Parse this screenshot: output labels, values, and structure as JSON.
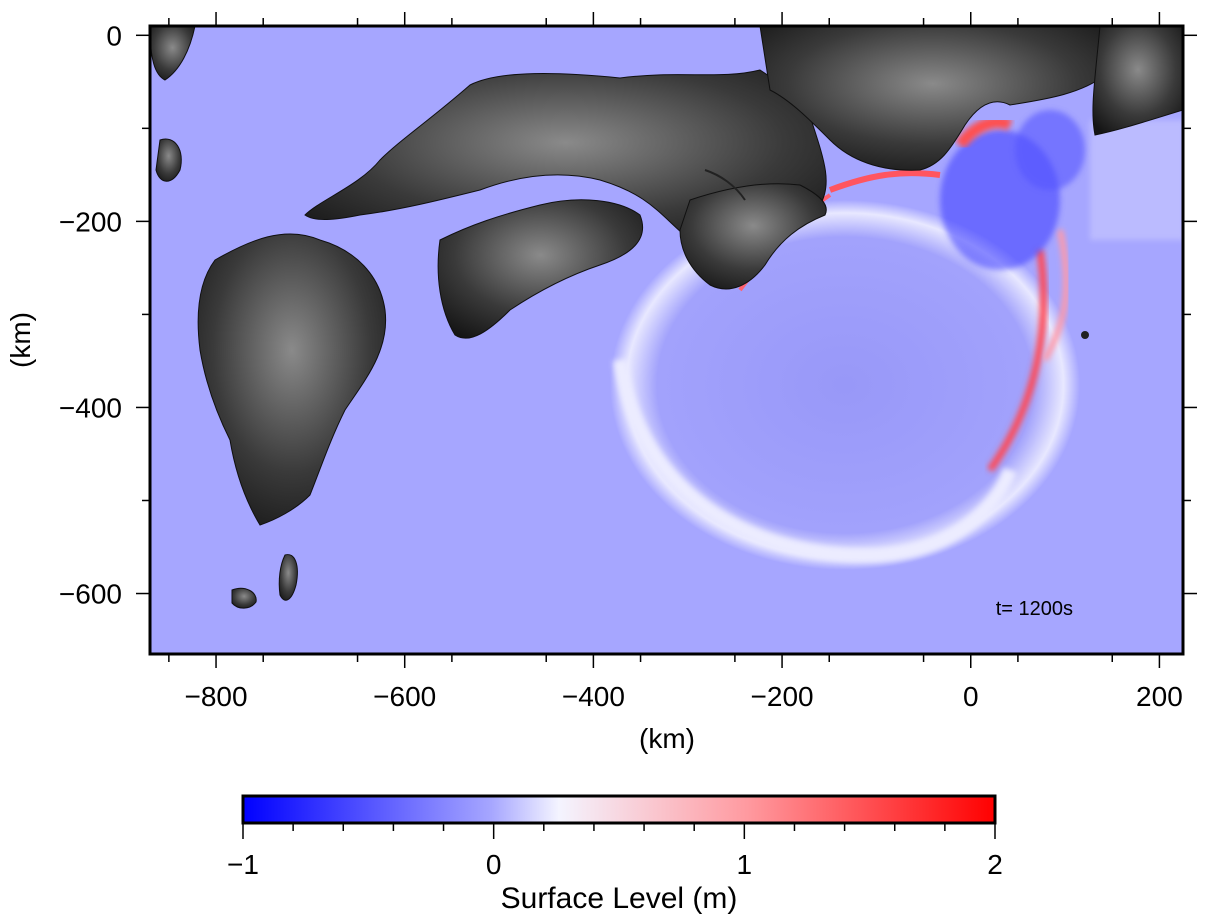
{
  "map": {
    "x_axis_label": "(km)",
    "y_axis_label": "(km)",
    "x_ticks": [
      -800,
      -600,
      -400,
      -200,
      0,
      200
    ],
    "y_ticks": [
      0,
      -200,
      -400,
      -600
    ],
    "x_tick_labels": [
      "−800",
      "−600",
      "−400",
      "−200",
      "0",
      "200"
    ],
    "y_tick_labels": [
      "0",
      "−200",
      "−400",
      "−600"
    ],
    "x_range": [
      -870,
      225
    ],
    "y_range": [
      -665,
      10
    ],
    "time_annotation": "t= 1200s",
    "ocean_color": "#a6a6ff",
    "land_colormap": "grayscale elevation"
  },
  "colorbar": {
    "label": "Surface Level (m)",
    "tick_labels": [
      "−1",
      "0",
      "1",
      "2"
    ],
    "range": [
      -1,
      2
    ],
    "colors": {
      "min": "#0000ff",
      "mid": "#f4f4ff",
      "max": "#ff0000"
    }
  }
}
